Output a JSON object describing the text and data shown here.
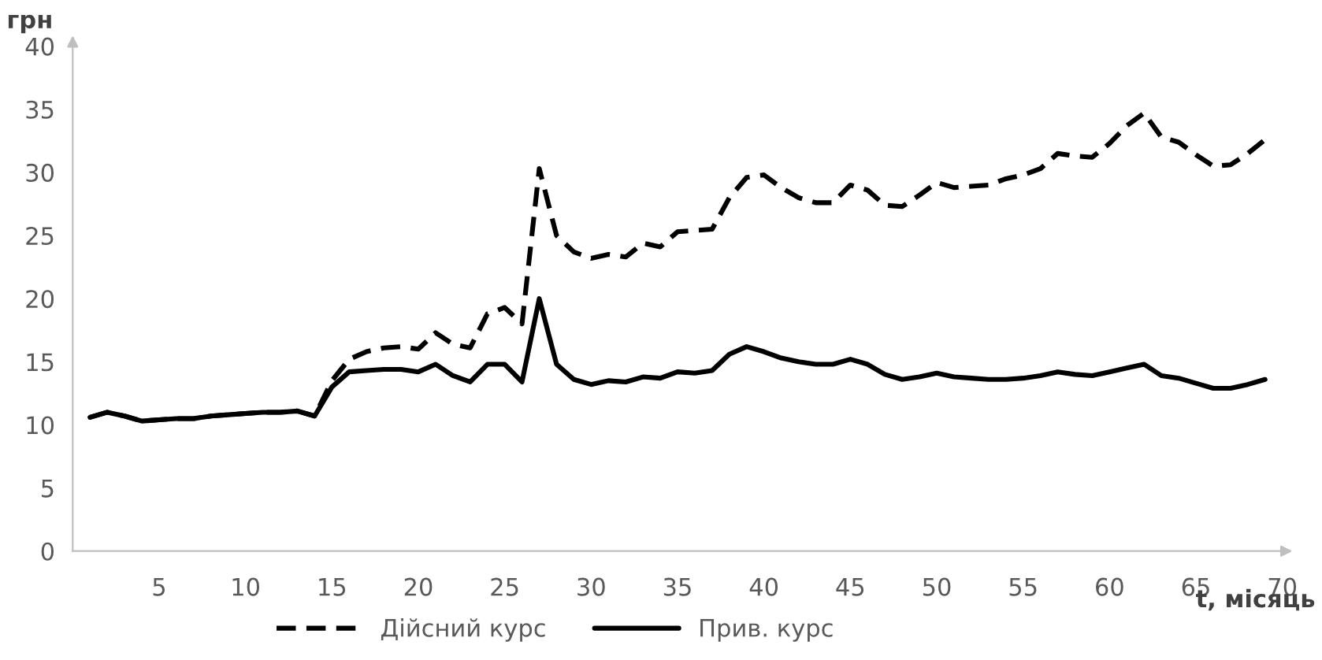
{
  "chart_data": {
    "type": "line",
    "xlabel": "t, місяць",
    "ylabel": "грн",
    "x": [
      1,
      2,
      3,
      4,
      5,
      6,
      7,
      8,
      9,
      10,
      11,
      12,
      13,
      14,
      15,
      16,
      17,
      18,
      19,
      20,
      21,
      22,
      23,
      24,
      25,
      26,
      27,
      28,
      29,
      30,
      31,
      32,
      33,
      34,
      35,
      36,
      37,
      38,
      39,
      40,
      41,
      42,
      43,
      44,
      45,
      46,
      47,
      48,
      49,
      50,
      51,
      52,
      53,
      54,
      55,
      56,
      57,
      58,
      59,
      60,
      61,
      62,
      63,
      64,
      65,
      66,
      67,
      68,
      69
    ],
    "series": [
      {
        "name": "Дійсний курс",
        "color": "#000000",
        "line_style": "dashed",
        "values": [
          10.6,
          11.0,
          10.7,
          10.3,
          10.4,
          10.5,
          10.5,
          10.7,
          10.8,
          10.9,
          11.0,
          11.0,
          11.1,
          10.7,
          13.5,
          15.2,
          15.8,
          16.1,
          16.2,
          16.0,
          17.3,
          16.4,
          16.1,
          18.8,
          19.3,
          18.0,
          30.3,
          25.0,
          23.7,
          23.2,
          23.5,
          23.3,
          24.4,
          24.1,
          25.3,
          25.4,
          25.5,
          28.0,
          29.6,
          29.8,
          28.8,
          28.0,
          27.6,
          27.6,
          29.0,
          28.6,
          27.4,
          27.3,
          28.2,
          29.2,
          28.8,
          28.9,
          29.0,
          29.5,
          29.8,
          30.3,
          31.5,
          31.3,
          31.2,
          32.3,
          33.7,
          34.7,
          32.8,
          32.4,
          31.4,
          30.5,
          30.6,
          31.5,
          32.6
        ]
      },
      {
        "name": "Прив. курс",
        "color": "#000000",
        "line_style": "solid",
        "values": [
          10.6,
          11.0,
          10.7,
          10.3,
          10.4,
          10.5,
          10.5,
          10.7,
          10.8,
          10.9,
          11.0,
          11.0,
          11.1,
          10.7,
          13.0,
          14.2,
          14.3,
          14.4,
          14.4,
          14.2,
          14.8,
          13.9,
          13.4,
          14.8,
          14.8,
          13.4,
          20.0,
          14.8,
          13.6,
          13.2,
          13.5,
          13.4,
          13.8,
          13.7,
          14.2,
          14.1,
          14.3,
          15.6,
          16.2,
          15.8,
          15.3,
          15.0,
          14.8,
          14.8,
          15.2,
          14.8,
          14.0,
          13.6,
          13.8,
          14.1,
          13.8,
          13.7,
          13.6,
          13.6,
          13.7,
          13.9,
          14.2,
          14.0,
          13.9,
          14.2,
          14.5,
          14.8,
          13.9,
          13.7,
          13.3,
          12.9,
          12.9,
          13.2,
          13.6
        ]
      }
    ],
    "xlim": [
      0,
      70
    ],
    "xticks": [
      5,
      10,
      15,
      20,
      25,
      30,
      35,
      40,
      45,
      50,
      55,
      60,
      65,
      70
    ],
    "ylim": [
      0,
      40
    ],
    "yticks": [
      0,
      5,
      10,
      15,
      20,
      25,
      30,
      35,
      40
    ],
    "grid": false,
    "legend": "bottom"
  }
}
